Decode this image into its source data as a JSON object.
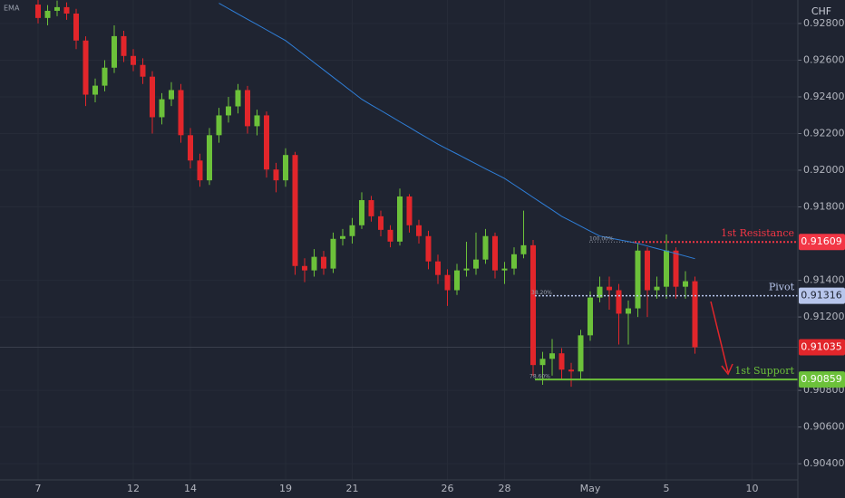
{
  "chart_data": {
    "type": "candlestick",
    "indicator": "EMA",
    "currency": "CHF",
    "categories": [
      "7",
      null,
      null,
      null,
      null,
      null,
      null,
      null,
      null,
      null,
      "12",
      null,
      null,
      null,
      null,
      null,
      "14",
      null,
      null,
      null,
      null,
      null,
      null,
      null,
      null,
      null,
      "19",
      null,
      null,
      null,
      null,
      null,
      null,
      "21",
      null,
      null,
      null,
      null,
      null,
      null,
      null,
      null,
      null,
      "26",
      null,
      null,
      null,
      null,
      null,
      "28",
      null,
      null,
      null,
      null,
      null,
      null,
      null,
      null,
      "May",
      null,
      null,
      null,
      null,
      null,
      null,
      null,
      "5",
      null,
      null,
      null,
      null,
      null,
      null,
      null,
      null,
      "10",
      null,
      null
    ],
    "open": [
      0.92903,
      0.9283,
      0.92869,
      0.92889,
      0.92854,
      0.92707,
      0.92412,
      0.92461,
      0.92559,
      0.92731,
      0.92623,
      0.92574,
      0.9251,
      0.92289,
      0.92387,
      0.92437,
      0.92191,
      0.92053,
      0.91945,
      0.92191,
      0.92299,
      0.92348,
      0.92437,
      0.9224,
      0.92299,
      0.92004,
      0.91945,
      0.92083,
      0.91478,
      0.91454,
      0.91528,
      0.91464,
      0.91626,
      0.91641,
      0.917,
      0.91837,
      0.91749,
      0.91675,
      0.91611,
      0.91857,
      0.917,
      0.91641,
      0.91503,
      0.91429,
      0.91346,
      0.91454,
      0.91464,
      0.91513,
      0.91641,
      0.91454,
      0.91464,
      0.91542,
      0.91591,
      0.90938,
      0.90972,
      0.91002,
      0.90913,
      0.90903,
      0.911,
      0.91306,
      0.91365,
      0.91346,
      0.91218,
      0.91247,
      0.91562,
      0.91346,
      0.91365,
      0.91562,
      0.91365,
      0.91395,
      null,
      null,
      null,
      null,
      null,
      null,
      null,
      null
    ],
    "high": [
      0.9293,
      0.929,
      0.92925,
      0.92915,
      0.9288,
      0.9273,
      0.925,
      0.926,
      0.9279,
      0.9276,
      0.9266,
      0.9261,
      0.9254,
      0.9242,
      0.9248,
      0.9247,
      0.9223,
      0.9209,
      0.9223,
      0.9234,
      0.924,
      0.9247,
      0.9246,
      0.9233,
      0.9232,
      0.9204,
      0.9212,
      0.921,
      0.9152,
      0.9157,
      0.9156,
      0.9166,
      0.9168,
      0.9174,
      0.9188,
      0.9186,
      0.9178,
      0.917,
      0.919,
      0.9187,
      0.9173,
      0.9167,
      0.9154,
      0.9146,
      0.9149,
      0.9161,
      0.9166,
      0.9168,
      0.9166,
      0.915,
      0.9158,
      0.9178,
      0.9162,
      0.9101,
      0.9108,
      0.9103,
      0.9095,
      0.9113,
      0.9134,
      0.9142,
      0.9142,
      0.9138,
      0.9129,
      0.916,
      0.9158,
      0.9142,
      0.9165,
      0.9158,
      0.9145,
      0.9142,
      null,
      null,
      null,
      null,
      null,
      null,
      null,
      null
    ],
    "low": [
      0.928,
      0.9279,
      0.9284,
      0.9282,
      0.9266,
      0.9235,
      0.9237,
      0.9243,
      0.9253,
      0.9259,
      0.9254,
      0.9247,
      0.922,
      0.9225,
      0.9235,
      0.9215,
      0.9201,
      0.9191,
      0.9192,
      0.9215,
      0.9226,
      0.9231,
      0.922,
      0.9219,
      0.9196,
      0.9188,
      0.9191,
      0.9143,
      0.9139,
      0.9142,
      0.9143,
      0.9144,
      0.9159,
      0.916,
      0.9168,
      0.9172,
      0.9164,
      0.9158,
      0.9159,
      0.9166,
      0.916,
      0.9146,
      0.9138,
      0.9126,
      0.9132,
      0.9142,
      0.9143,
      0.9149,
      0.9141,
      0.9138,
      0.9143,
      0.9152,
      0.9088,
      0.9083,
      0.9088,
      0.9086,
      0.9082,
      0.9086,
      0.9107,
      0.9128,
      0.9124,
      0.9105,
      0.9105,
      0.912,
      0.912,
      0.913,
      0.913,
      0.913,
      0.913,
      0.91,
      null,
      null,
      null,
      null,
      null,
      null,
      null,
      null
    ],
    "close": [
      0.9283,
      0.92869,
      0.92889,
      0.92854,
      0.92707,
      0.92412,
      0.92461,
      0.92559,
      0.92731,
      0.92623,
      0.92574,
      0.9251,
      0.92289,
      0.92387,
      0.92437,
      0.92191,
      0.92053,
      0.91945,
      0.92191,
      0.92299,
      0.92348,
      0.92437,
      0.9224,
      0.92299,
      0.92004,
      0.91945,
      0.92083,
      0.91478,
      0.91454,
      0.91528,
      0.91464,
      0.91626,
      0.91641,
      0.917,
      0.91837,
      0.91749,
      0.91675,
      0.91611,
      0.91857,
      0.917,
      0.91641,
      0.91503,
      0.91429,
      0.91346,
      0.91454,
      0.91464,
      0.91513,
      0.91641,
      0.91454,
      0.91464,
      0.91542,
      0.91591,
      0.90938,
      0.90972,
      0.91002,
      0.90913,
      0.90903,
      0.911,
      0.91306,
      0.91365,
      0.91346,
      0.91218,
      0.91247,
      0.91562,
      0.91346,
      0.91365,
      0.91562,
      0.91365,
      0.91395,
      0.91035,
      null,
      null,
      null,
      null,
      null,
      null,
      null,
      null
    ],
    "up_color": "#6cc13a",
    "down_color": "#e2262b",
    "ema": {
      "name": "EMA",
      "color": "#2f7fd9",
      "values": [
        null,
        null,
        null,
        null,
        null,
        null,
        null,
        null,
        null,
        null,
        null,
        null,
        null,
        null,
        null,
        null,
        null,
        null,
        null,
        0.9291,
        0.92881,
        0.92852,
        0.92823,
        0.92794,
        0.92765,
        0.92736,
        0.92707,
        0.92667,
        0.92627,
        0.92587,
        0.92547,
        0.92507,
        0.92467,
        0.92427,
        0.92387,
        0.92356,
        0.92326,
        0.92295,
        0.92264,
        0.92234,
        0.92203,
        0.92173,
        0.92142,
        0.92115,
        0.92089,
        0.92062,
        0.92035,
        0.92008,
        0.91982,
        0.91955,
        0.91921,
        0.91887,
        0.91852,
        0.91818,
        0.91784,
        0.91749,
        0.91722,
        0.91695,
        0.91668,
        0.91641,
        0.91631,
        0.91621,
        0.91611,
        0.91601,
        0.91587,
        0.91573,
        0.9156,
        0.91546,
        0.91532,
        0.91518,
        null,
        null,
        null,
        null,
        null,
        null,
        null,
        null
      ]
    },
    "levels": [
      {
        "name": "1st Resistance",
        "value": 0.91609,
        "fib": "100.00%",
        "color": "#f23645"
      },
      {
        "name": "Pivot",
        "value": 0.91316,
        "fib": "38.20%",
        "color": "#b8c6ec"
      },
      {
        "name": "1st Support",
        "value": 0.90859,
        "fib": "78.60%",
        "color": "#6cc13a"
      }
    ],
    "ylim": [
      0.90312,
      0.92928
    ],
    "yticks": [
      {
        "value": 0.928,
        "label": "0.92800"
      },
      {
        "value": 0.926,
        "label": "0.92600"
      },
      {
        "value": 0.924,
        "label": "0.92400"
      },
      {
        "value": 0.922,
        "label": "0.92200"
      },
      {
        "value": 0.92,
        "label": "0.92000"
      },
      {
        "value": 0.918,
        "label": "0.91800"
      },
      {
        "value": 0.914,
        "label": "0.91400"
      },
      {
        "value": 0.912,
        "label": "0.91200"
      },
      {
        "value": 0.908,
        "label": "0.90800"
      },
      {
        "value": 0.906,
        "label": "0.90600"
      },
      {
        "value": 0.904,
        "label": "0.90400"
      }
    ],
    "grid": true
  }
}
